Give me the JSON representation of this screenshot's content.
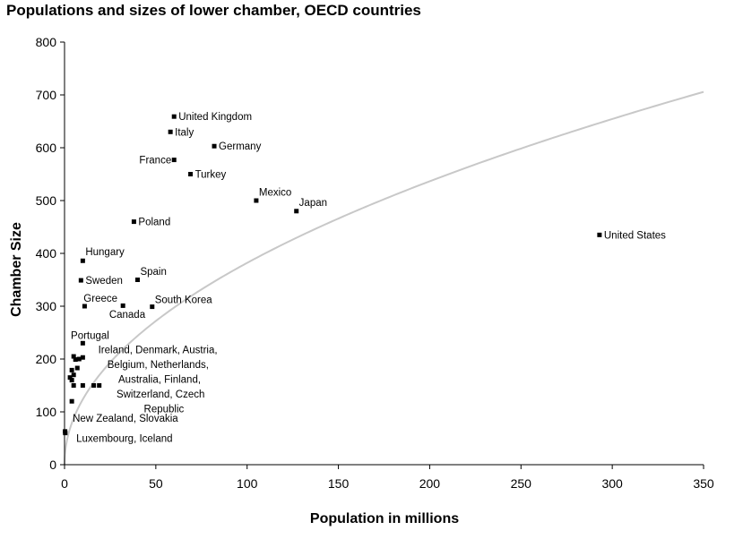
{
  "chart_data": {
    "type": "scatter",
    "title": "Populations and sizes of lower chamber, OECD countries",
    "xlabel": "Population in millions",
    "ylabel": "Chamber Size",
    "xlim": [
      0,
      350
    ],
    "ylim": [
      0,
      800
    ],
    "xticks": [
      0,
      50,
      100,
      150,
      200,
      250,
      300,
      350
    ],
    "yticks": [
      0,
      100,
      200,
      300,
      400,
      500,
      600,
      700,
      800
    ],
    "grid": false,
    "legend": "none",
    "colors": {
      "points": "#000000",
      "curve": "#c8c8c8",
      "axis": "#000000"
    },
    "points": [
      {
        "x": 60,
        "y": 659
      },
      {
        "x": 58,
        "y": 630
      },
      {
        "x": 82,
        "y": 603
      },
      {
        "x": 60,
        "y": 577
      },
      {
        "x": 69,
        "y": 550
      },
      {
        "x": 105,
        "y": 500
      },
      {
        "x": 127,
        "y": 480
      },
      {
        "x": 38,
        "y": 460
      },
      {
        "x": 293,
        "y": 435
      },
      {
        "x": 10,
        "y": 386
      },
      {
        "x": 9,
        "y": 349
      },
      {
        "x": 40,
        "y": 350
      },
      {
        "x": 11,
        "y": 300
      },
      {
        "x": 32,
        "y": 301
      },
      {
        "x": 48,
        "y": 299
      },
      {
        "x": 10,
        "y": 230
      },
      {
        "x": 5,
        "y": 205
      },
      {
        "x": 8,
        "y": 200
      },
      {
        "x": 10,
        "y": 203
      },
      {
        "x": 6,
        "y": 199
      },
      {
        "x": 7,
        "y": 183
      },
      {
        "x": 4,
        "y": 179
      },
      {
        "x": 5,
        "y": 170
      },
      {
        "x": 3,
        "y": 165
      },
      {
        "x": 4,
        "y": 160
      },
      {
        "x": 5,
        "y": 150
      },
      {
        "x": 10,
        "y": 150
      },
      {
        "x": 16,
        "y": 150
      },
      {
        "x": 19,
        "y": 150
      },
      {
        "x": 4,
        "y": 120
      },
      {
        "x": 0.4,
        "y": 60
      },
      {
        "x": 0.3,
        "y": 63
      }
    ],
    "labels": [
      {
        "text": "United Kingdom",
        "x": 60,
        "y": 659,
        "anchor": "start"
      },
      {
        "text": "Italy",
        "x": 58,
        "y": 630,
        "anchor": "start"
      },
      {
        "text": "Germany",
        "x": 82,
        "y": 603,
        "anchor": "start"
      },
      {
        "text": "France",
        "x": 60,
        "y": 577,
        "anchor": "end"
      },
      {
        "text": "Turkey",
        "x": 69,
        "y": 550,
        "anchor": "start"
      },
      {
        "text": "Mexico",
        "x": 104,
        "y": 516,
        "anchor": "start"
      },
      {
        "text": "Japan",
        "x": 126,
        "y": 497,
        "anchor": "start"
      },
      {
        "text": "Poland",
        "x": 38,
        "y": 460,
        "anchor": "start"
      },
      {
        "text": "United States",
        "x": 293,
        "y": 435,
        "anchor": "start"
      },
      {
        "text": "Hungary",
        "x": 9,
        "y": 403,
        "anchor": "start"
      },
      {
        "text": "Sweden",
        "x": 9,
        "y": 349,
        "anchor": "start"
      },
      {
        "text": "Spain",
        "x": 39,
        "y": 366,
        "anchor": "start"
      },
      {
        "text": "Greece",
        "x": 8,
        "y": 315,
        "anchor": "start"
      },
      {
        "text": "South Korea",
        "x": 47,
        "y": 313,
        "anchor": "start"
      },
      {
        "text": "Canada",
        "x": 22,
        "y": 285,
        "anchor": "start"
      },
      {
        "text": "Portugal",
        "x": 1,
        "y": 245,
        "anchor": "start"
      },
      {
        "text": "Ireland, Denmark, Austria,",
        "x": 16,
        "y": 218,
        "anchor": "start"
      },
      {
        "text": "Belgium, Netherlands,",
        "x": 21,
        "y": 190,
        "anchor": "start"
      },
      {
        "text": "Australia, Finland,",
        "x": 27,
        "y": 162,
        "anchor": "start"
      },
      {
        "text": "Switzerland, Czech",
        "x": 26,
        "y": 134,
        "anchor": "start"
      },
      {
        "text": "Republic",
        "x": 41,
        "y": 106,
        "anchor": "start"
      },
      {
        "text": "New Zealand, Slovakia",
        "x": 2,
        "y": 88,
        "anchor": "start"
      },
      {
        "text": "Luxembourg, Iceland",
        "x": 4,
        "y": 50,
        "anchor": "start"
      }
    ],
    "fit_curve": {
      "a": 40,
      "exponent": 0.49
    }
  }
}
